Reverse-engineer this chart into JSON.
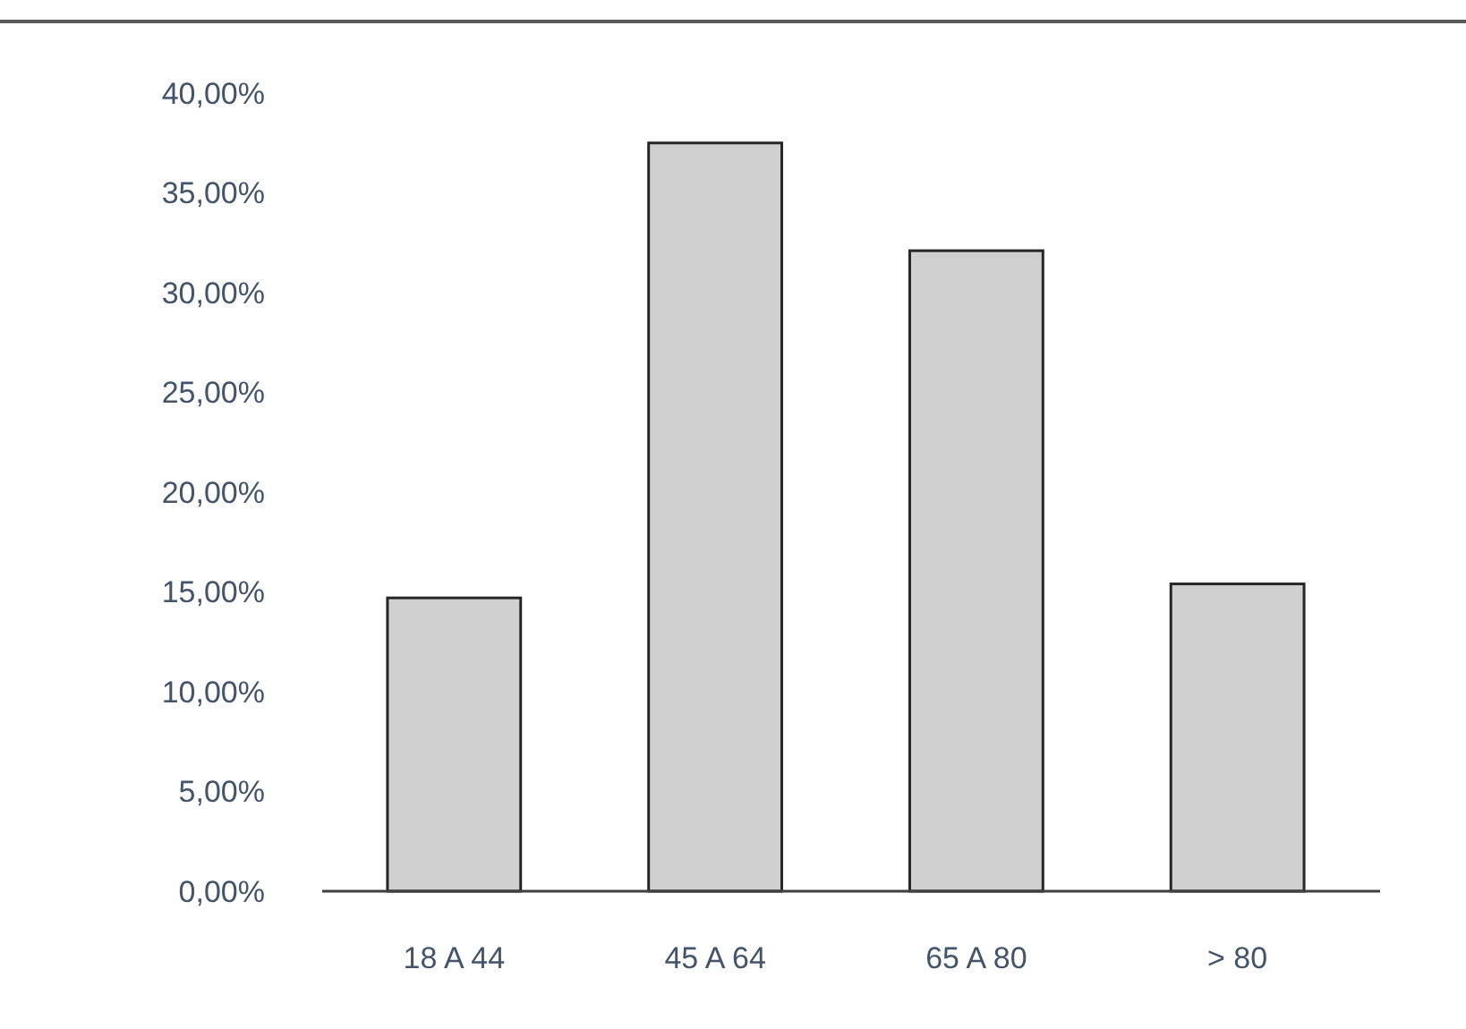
{
  "chart_data": {
    "type": "bar",
    "categories": [
      "18 A 44",
      "45 A 64",
      "65 A 80",
      "> 80"
    ],
    "values": [
      14.7,
      37.5,
      32.1,
      15.4
    ],
    "color": "#d0d0d0",
    "ylim": [
      0,
      40
    ],
    "yticks": [
      {
        "value": 0,
        "label": "0,00%"
      },
      {
        "value": 5,
        "label": "5,00%"
      },
      {
        "value": 10,
        "label": "10,00%"
      },
      {
        "value": 15,
        "label": "15,00%"
      },
      {
        "value": 20,
        "label": "20,00%"
      },
      {
        "value": 25,
        "label": "25,00%"
      },
      {
        "value": 30,
        "label": "30,00%"
      },
      {
        "value": 35,
        "label": "35,00%"
      },
      {
        "value": 40,
        "label": "40,00%"
      }
    ],
    "grid": false
  }
}
